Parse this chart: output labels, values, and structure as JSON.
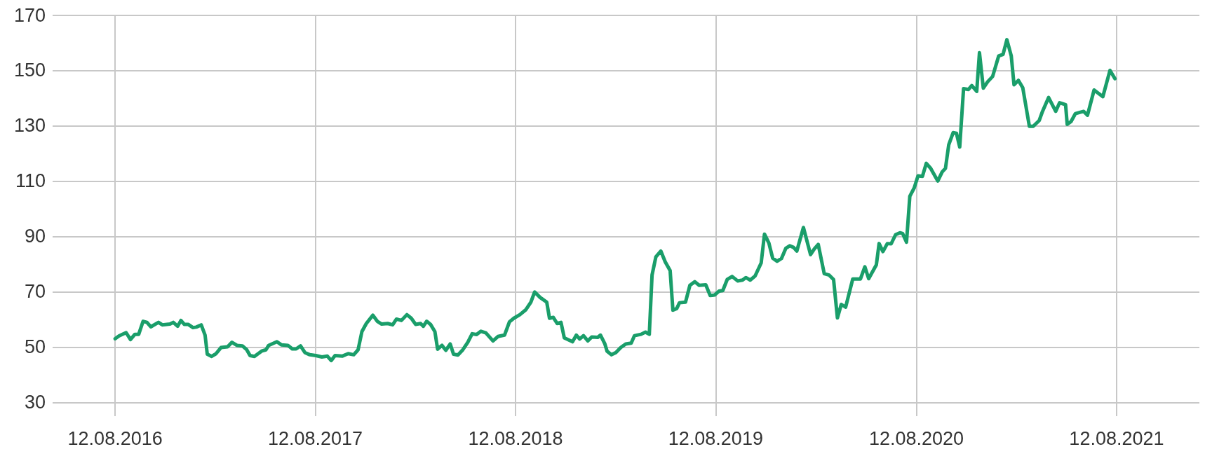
{
  "chart_data": {
    "type": "line",
    "grid": true,
    "marker": "none",
    "line_style": "solid",
    "xlim": [
      "2016-04-20",
      "2022-01-10"
    ],
    "xticks": [
      {
        "value": "2016-08-12",
        "label": "12.08.2016"
      },
      {
        "value": "2017-08-12",
        "label": "12.08.2017"
      },
      {
        "value": "2018-08-12",
        "label": "12.08.2018"
      },
      {
        "value": "2019-08-12",
        "label": "12.08.2019"
      },
      {
        "value": "2020-08-12",
        "label": "12.08.2020"
      },
      {
        "value": "2021-08-12",
        "label": "12.08.2021"
      }
    ],
    "ylim": [
      25,
      170
    ],
    "yticks": [
      30,
      50,
      70,
      90,
      110,
      130,
      150,
      170
    ],
    "series": [
      {
        "color": "#1a9e6a",
        "x": [
          "2016-08-12",
          "2016-08-19",
          "2016-09-01",
          "2016-09-09",
          "2016-09-17",
          "2016-09-24",
          "2016-10-02",
          "2016-10-09",
          "2016-10-16",
          "2016-10-30",
          "2016-11-06",
          "2016-11-20",
          "2016-11-26",
          "2016-12-04",
          "2016-12-10",
          "2016-12-16",
          "2016-12-23",
          "2017-01-01",
          "2017-01-07",
          "2017-01-16",
          "2017-01-23",
          "2017-01-27",
          "2017-02-04",
          "2017-02-12",
          "2017-02-21",
          "2017-03-05",
          "2017-03-13",
          "2017-03-22",
          "2017-04-01",
          "2017-04-09",
          "2017-04-15",
          "2017-04-23",
          "2017-05-06",
          "2017-05-14",
          "2017-05-19",
          "2017-06-03",
          "2017-06-11",
          "2017-06-23",
          "2017-07-01",
          "2017-07-08",
          "2017-07-16",
          "2017-07-24",
          "2017-08-02",
          "2017-08-13",
          "2017-08-24",
          "2017-09-03",
          "2017-09-10",
          "2017-09-17",
          "2017-09-30",
          "2017-10-11",
          "2017-10-21",
          "2017-10-29",
          "2017-11-05",
          "2017-11-13",
          "2017-11-25",
          "2017-12-03",
          "2017-12-11",
          "2017-12-22",
          "2017-12-31",
          "2018-01-07",
          "2018-01-16",
          "2018-01-26",
          "2018-02-03",
          "2018-02-11",
          "2018-02-20",
          "2018-02-25",
          "2018-03-03",
          "2018-03-10",
          "2018-03-18",
          "2018-03-23",
          "2018-03-31",
          "2018-04-07",
          "2018-04-15",
          "2018-04-21",
          "2018-04-29",
          "2018-05-08",
          "2018-05-17",
          "2018-05-25",
          "2018-06-02",
          "2018-06-10",
          "2018-06-19",
          "2018-07-02",
          "2018-07-11",
          "2018-07-23",
          "2018-08-01",
          "2018-08-09",
          "2018-08-20",
          "2018-08-31",
          "2018-09-09",
          "2018-09-16",
          "2018-09-26",
          "2018-10-08",
          "2018-10-13",
          "2018-10-20",
          "2018-10-27",
          "2018-11-03",
          "2018-11-09",
          "2018-11-24",
          "2018-12-01",
          "2018-12-07",
          "2018-12-14",
          "2018-12-22",
          "2018-12-29",
          "2019-01-09",
          "2019-01-14",
          "2019-01-22",
          "2019-01-26",
          "2019-02-03",
          "2019-02-11",
          "2019-02-20",
          "2019-03-01",
          "2019-03-11",
          "2019-03-17",
          "2019-03-29",
          "2019-04-06",
          "2019-04-13",
          "2019-04-18",
          "2019-04-25",
          "2019-05-04",
          "2019-05-12",
          "2019-05-21",
          "2019-05-26",
          "2019-06-02",
          "2019-06-07",
          "2019-06-18",
          "2019-06-26",
          "2019-07-05",
          "2019-07-13",
          "2019-07-25",
          "2019-08-02",
          "2019-08-10",
          "2019-08-18",
          "2019-08-25",
          "2019-09-02",
          "2019-09-11",
          "2019-09-21",
          "2019-09-30",
          "2019-10-06",
          "2019-10-14",
          "2019-10-23",
          "2019-11-03",
          "2019-11-09",
          "2019-11-17",
          "2019-11-24",
          "2019-12-02",
          "2019-12-10",
          "2019-12-18",
          "2019-12-25",
          "2020-01-01",
          "2020-01-07",
          "2020-01-19",
          "2020-02-01",
          "2020-02-08",
          "2020-02-15",
          "2020-02-26",
          "2020-03-06",
          "2020-03-14",
          "2020-03-21",
          "2020-03-28",
          "2020-04-05",
          "2020-04-18",
          "2020-05-02",
          "2020-05-10",
          "2020-05-17",
          "2020-05-31",
          "2020-06-05",
          "2020-06-12",
          "2020-06-20",
          "2020-06-27",
          "2020-07-05",
          "2020-07-13",
          "2020-07-18",
          "2020-07-25",
          "2020-07-31",
          "2020-08-08",
          "2020-08-15",
          "2020-08-23",
          "2020-08-30",
          "2020-09-07",
          "2020-09-20",
          "2020-09-28",
          "2020-10-04",
          "2020-10-10",
          "2020-10-18",
          "2020-10-24",
          "2020-10-30",
          "2020-11-06",
          "2020-11-15",
          "2020-11-21",
          "2020-11-30",
          "2020-12-05",
          "2020-12-12",
          "2020-12-20",
          "2020-12-29",
          "2021-01-09",
          "2021-01-17",
          "2021-01-24",
          "2021-02-01",
          "2021-02-06",
          "2021-02-14",
          "2021-02-22",
          "2021-03-06",
          "2021-03-13",
          "2021-03-24",
          "2021-03-30",
          "2021-04-10",
          "2021-04-23",
          "2021-04-30",
          "2021-05-11",
          "2021-05-14",
          "2021-05-21",
          "2021-05-29",
          "2021-06-13",
          "2021-06-20",
          "2021-07-02",
          "2021-07-18",
          "2021-07-31",
          "2021-08-09"
        ],
        "values": [
          53.0,
          54,
          55.2,
          52.7,
          54.6,
          54.6,
          59.3,
          58.9,
          57.3,
          58.9,
          58,
          58.3,
          58.9,
          57.5,
          59.6,
          58.2,
          58.2,
          57,
          57.2,
          58,
          54.3,
          47.4,
          46.6,
          47.6,
          49.8,
          50.1,
          51.7,
          50.6,
          50.4,
          49,
          46.9,
          46.6,
          48.5,
          49,
          50.6,
          51.9,
          50.8,
          50.6,
          49.3,
          49.3,
          50.4,
          48,
          47.2,
          46.9,
          46.4,
          46.7,
          45.1,
          46.9,
          46.7,
          47.6,
          47.2,
          49,
          55.6,
          58.5,
          61.5,
          59.3,
          58.3,
          58.5,
          58,
          60.1,
          59.6,
          61.7,
          60.4,
          58.2,
          58.5,
          57.5,
          59.3,
          58.2,
          55.6,
          49.2,
          50.6,
          48.8,
          51.1,
          47.4,
          47.1,
          49,
          51.7,
          54.8,
          54.5,
          55.7,
          55.1,
          52.2,
          53.8,
          54.3,
          59.1,
          60.4,
          61.7,
          63.5,
          66.2,
          69.9,
          67.9,
          66.2,
          60.4,
          60.7,
          58.5,
          58.9,
          53.3,
          51.9,
          54.3,
          52.9,
          54.1,
          52.2,
          53.6,
          53.5,
          54.3,
          51.1,
          48.5,
          47.2,
          48,
          49.8,
          51.1,
          51.4,
          54.1,
          54.6,
          55.4,
          54.6,
          76,
          82.6,
          84.7,
          80.8,
          77.6,
          63.3,
          63.9,
          66,
          66.2,
          72.3,
          73.6,
          72.3,
          72.5,
          68.6,
          68.8,
          70.2,
          70.4,
          74.4,
          75.5,
          73.9,
          74.2,
          75.1,
          74.2,
          75.7,
          80.4,
          90.8,
          87.6,
          82.1,
          81,
          82,
          85.7,
          86.6,
          86,
          84.7,
          93.2,
          83.4,
          85.5,
          87.1,
          76.5,
          76,
          74.4,
          60.5,
          65.4,
          64.4,
          74.6,
          74.6,
          79,
          74.7,
          79.7,
          87.4,
          84.5,
          87.4,
          87.3,
          90.6,
          91.3,
          91,
          87.9,
          104.5,
          107.5,
          111.9,
          111.7,
          116.4,
          114.6,
          110,
          113.3,
          114.6,
          123.1,
          127.5,
          127.3,
          122.3,
          143.4,
          143.1,
          144.5,
          142.4,
          156.4,
          143.6,
          145.9,
          147.8,
          155.2,
          155.8,
          161.1,
          155.2,
          144.8,
          146.4,
          143.7,
          129.8,
          129.8,
          131.9,
          135.2,
          140.2,
          135.2,
          138.3,
          137.6,
          130.5,
          131.5,
          134.4,
          135.2,
          133.8,
          142.9,
          140.5,
          150,
          147
        ]
      }
    ]
  }
}
